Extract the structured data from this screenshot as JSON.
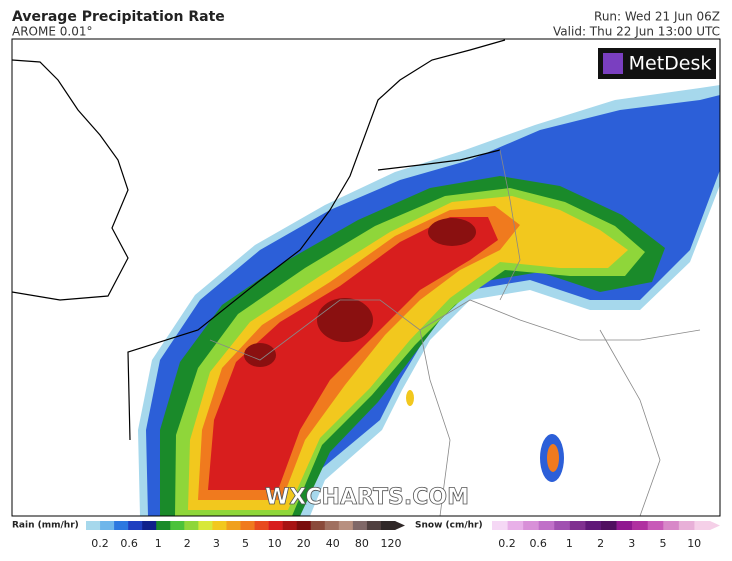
{
  "header": {
    "title": "Average Precipitation Rate",
    "subtitle": "AROME 0.01°",
    "run": "Run: Wed 21 Jun 06Z",
    "valid": "Valid: Thu 22 Jun 13:00 UTC"
  },
  "logo": "MetDesk",
  "watermark": "WXCHARTS.COM",
  "legend": {
    "rain": {
      "label": "Rain (mm/hr)",
      "ticks": [
        "0.2",
        "0.6",
        "1",
        "2",
        "3",
        "5",
        "10",
        "20",
        "40",
        "80",
        "120"
      ]
    },
    "snow": {
      "label": "Snow (cm/hr)",
      "ticks": [
        "0.2",
        "0.6",
        "1",
        "2",
        "3",
        "5",
        "10"
      ]
    }
  }
}
